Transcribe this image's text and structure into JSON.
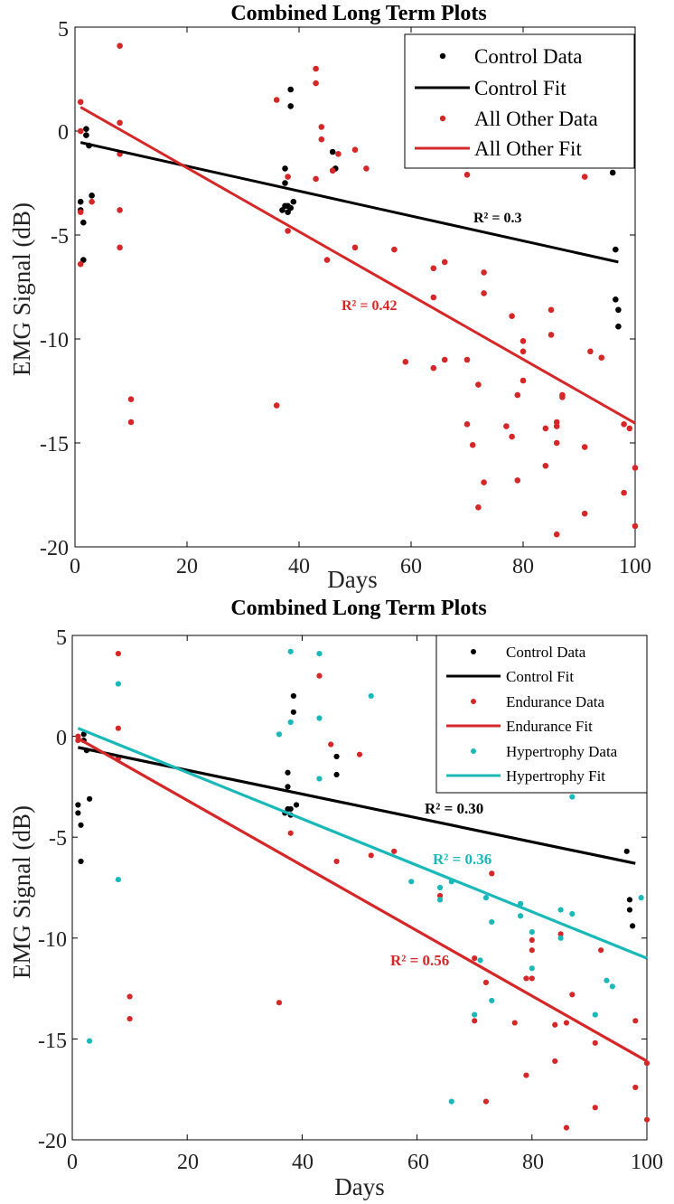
{
  "colors": {
    "control": "#000000",
    "other": "#d62728",
    "hyper": "#1ab8b8"
  },
  "chart_data": [
    {
      "type": "scatter",
      "title": "Combined Long Term Plots",
      "xlabel": "Days",
      "ylabel": "EMG Signal (dB)",
      "xlim": [
        0,
        100
      ],
      "ylim": [
        -20,
        5
      ],
      "xticks": [
        "0",
        "20",
        "40",
        "60",
        "80",
        "100"
      ],
      "yticks": [
        "5",
        "0",
        "-5",
        "-10",
        "-15",
        "-20"
      ],
      "legend_position": "top-right",
      "legend": [
        "Control Data",
        "Control Fit",
        "All Other Data",
        "All Other Fit"
      ],
      "series": [
        {
          "name": "Control Data",
          "kind": "points",
          "color": "control",
          "x": [
            1,
            1,
            1.5,
            1.5,
            2,
            2,
            2.5,
            3,
            37,
            37.5,
            37.5,
            37.5,
            38,
            38,
            38.5,
            38.5,
            38.5,
            39,
            46,
            46,
            46.5,
            96,
            96.5,
            96.5,
            97,
            97
          ],
          "y": [
            -3.4,
            -3.8,
            -6.2,
            -4.4,
            -0.2,
            0.1,
            -0.7,
            -3.1,
            -3.8,
            -2.5,
            -1.8,
            -3.6,
            -3.9,
            -3.6,
            2.0,
            1.2,
            -3.7,
            -3.4,
            -1.0,
            -1.9,
            -1.8,
            -2.0,
            -5.7,
            -8.1,
            -8.6,
            -9.4
          ]
        },
        {
          "name": "Control Fit",
          "kind": "line",
          "color": "control",
          "x": [
            1,
            97
          ],
          "y": [
            -0.55,
            -6.3
          ]
        },
        {
          "name": "All Other Data",
          "kind": "points",
          "color": "other",
          "x": [
            1,
            1,
            1,
            1,
            3,
            8,
            8,
            8,
            8,
            8,
            10,
            10,
            36,
            36,
            38,
            38,
            43,
            43,
            43,
            44,
            44,
            45,
            46,
            47,
            50,
            50,
            52,
            57,
            59,
            64,
            64,
            64,
            66,
            66,
            70,
            70,
            70,
            71,
            72,
            72,
            73,
            73,
            73,
            77,
            78,
            78,
            79,
            79,
            80,
            80,
            80,
            84,
            84,
            85,
            85,
            86,
            86,
            86,
            86,
            87,
            87,
            91,
            91,
            91,
            92,
            94,
            98,
            98,
            99,
            100,
            100
          ],
          "y": [
            1.4,
            0.0,
            -3.9,
            -6.4,
            -3.4,
            4.1,
            0.4,
            -1.1,
            -3.8,
            -5.6,
            -12.9,
            -14.0,
            1.5,
            -13.2,
            -2.2,
            -4.8,
            3.0,
            2.3,
            -2.3,
            0.2,
            -0.4,
            -6.2,
            -1.9,
            -1.1,
            -5.6,
            -0.9,
            -1.8,
            -5.7,
            -11.1,
            -6.6,
            -8.0,
            -11.4,
            -6.3,
            -11.0,
            -2.1,
            -11.0,
            -14.1,
            -15.1,
            -12.2,
            -18.1,
            -6.8,
            -7.8,
            -16.9,
            -14.2,
            -14.7,
            -8.9,
            -12.7,
            -16.8,
            -10.6,
            -10.1,
            -12.0,
            -16.1,
            -14.3,
            -9.8,
            -8.6,
            -14.0,
            -14.2,
            -15.0,
            -19.4,
            -12.8,
            -12.7,
            -2.2,
            -15.2,
            -18.4,
            -10.6,
            -10.9,
            -14.1,
            -17.4,
            -14.3,
            -16.2,
            -19.0
          ]
        },
        {
          "name": "All Other Fit",
          "kind": "line",
          "color": "other",
          "x": [
            1,
            100
          ],
          "y": [
            1.15,
            -14.05
          ]
        }
      ],
      "annotations": [
        {
          "text": "R² = 0.3",
          "color": "control"
        },
        {
          "text": "R² = 0.42",
          "color": "other"
        }
      ]
    },
    {
      "type": "scatter",
      "title": "Combined Long Term Plots",
      "xlabel": "Days",
      "ylabel": "EMG Signal (dB)",
      "xlim": [
        0,
        100
      ],
      "ylim": [
        -20,
        5
      ],
      "xticks": [
        "0",
        "20",
        "40",
        "60",
        "80",
        "100"
      ],
      "yticks": [
        "5",
        "0",
        "-5",
        "-10",
        "-15",
        "-20"
      ],
      "legend_position": "top-right",
      "legend": [
        "Control Data",
        "Control Fit",
        "Endurance Data",
        "Endurance Fit",
        "Hypertrophy Data",
        "Hypertrophy Fit"
      ],
      "series": [
        {
          "name": "Control Data",
          "kind": "points",
          "color": "control",
          "x": [
            1,
            1,
            1.5,
            1.5,
            2,
            2,
            2.5,
            3,
            37,
            37.5,
            37.5,
            37.5,
            38,
            38,
            38.5,
            38.5,
            39,
            46,
            46,
            96.5,
            97,
            97,
            97.5
          ],
          "y": [
            -3.4,
            -3.8,
            -6.2,
            -4.4,
            -0.2,
            0.1,
            -0.7,
            -3.1,
            -3.8,
            -2.5,
            -1.8,
            -3.6,
            -3.9,
            -3.6,
            2.0,
            1.2,
            -3.4,
            -1.0,
            -1.9,
            -5.7,
            -8.1,
            -8.6,
            -9.4
          ]
        },
        {
          "name": "Control Fit",
          "kind": "line",
          "color": "control",
          "x": [
            1,
            98
          ],
          "y": [
            -0.55,
            -6.3
          ]
        },
        {
          "name": "Endurance Data",
          "kind": "points",
          "color": "other",
          "x": [
            1,
            1,
            8,
            8,
            8,
            10,
            10,
            36,
            38,
            43,
            45,
            46,
            50,
            52,
            56,
            64,
            70,
            70,
            72,
            72,
            73,
            77,
            79,
            79,
            80,
            80,
            80,
            84,
            84,
            85,
            86,
            86,
            87,
            91,
            91,
            92,
            98,
            98,
            100,
            100
          ],
          "y": [
            0.0,
            -0.2,
            4.1,
            0.4,
            -1.1,
            -12.9,
            -14.0,
            -13.2,
            -4.8,
            3.0,
            -0.4,
            -6.2,
            -0.9,
            -5.9,
            -5.7,
            -7.9,
            -11.0,
            -14.1,
            -12.2,
            -18.1,
            -6.8,
            -14.2,
            -12.0,
            -16.8,
            -10.6,
            -10.1,
            -12.0,
            -16.1,
            -14.3,
            -9.8,
            -14.2,
            -19.4,
            -12.8,
            -15.2,
            -18.4,
            -10.6,
            -14.1,
            -17.4,
            -16.2,
            -19.0
          ]
        },
        {
          "name": "Endurance Fit",
          "kind": "line",
          "color": "other",
          "x": [
            1,
            100
          ],
          "y": [
            -0.1,
            -16.1
          ]
        },
        {
          "name": "Hypertrophy Data",
          "kind": "points",
          "color": "hyper",
          "x": [
            3,
            8,
            8,
            36,
            38,
            38,
            43,
            43,
            43,
            52,
            59,
            64,
            64,
            66,
            66,
            70,
            71,
            72,
            73,
            73,
            78,
            78,
            80,
            80,
            85,
            85,
            87,
            87,
            91,
            93,
            94,
            99
          ],
          "y": [
            -15.1,
            2.6,
            -7.1,
            0.1,
            4.2,
            0.7,
            4.1,
            0.9,
            -2.1,
            2.0,
            -7.2,
            -7.5,
            -8.1,
            -7.2,
            -18.1,
            -13.8,
            -11.1,
            -8.0,
            -9.2,
            -13.1,
            -8.3,
            -8.9,
            -9.7,
            -11.5,
            -8.6,
            -10.0,
            -8.8,
            -3.0,
            -13.8,
            -12.1,
            -12.4,
            -8.0
          ]
        },
        {
          "name": "Hypertrophy Fit",
          "kind": "line",
          "color": "hyper",
          "x": [
            1,
            100
          ],
          "y": [
            0.4,
            -11.0
          ]
        }
      ],
      "annotations": [
        {
          "text": "R² = 0.30",
          "color": "control"
        },
        {
          "text": "R² = 0.36",
          "color": "hyper"
        },
        {
          "text": "R² = 0.56",
          "color": "other"
        }
      ]
    }
  ]
}
